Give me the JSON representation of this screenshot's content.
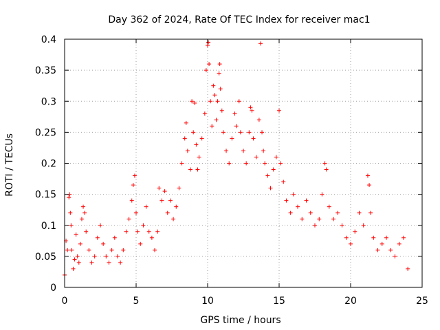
{
  "chart_data": {
    "type": "scatter",
    "title": "Day 362 of 2024, Rate Of TEC Index for receiver mac1",
    "xlabel": "GPS time / hours",
    "ylabel": "ROTI / TECUs",
    "xlim": [
      0,
      25
    ],
    "ylim": [
      0,
      0.4
    ],
    "xticks": [
      0,
      5,
      10,
      15,
      20,
      25
    ],
    "yticks": [
      0,
      0.05,
      0.1,
      0.15,
      0.2,
      0.25,
      0.3,
      0.35,
      0.4
    ],
    "xtick_labels": [
      "0",
      "5",
      "10",
      "15",
      "20",
      "25"
    ],
    "ytick_labels": [
      "0",
      "0.05",
      "0.1",
      "0.15",
      "0.2",
      "0.25",
      "0.3",
      "0.35",
      "0.4"
    ],
    "grid": true,
    "marker": "+",
    "color": "#ff0000",
    "series": [
      {
        "points": [
          [
            0.0,
            0.02
          ],
          [
            0.1,
            0.075
          ],
          [
            0.2,
            0.06
          ],
          [
            0.3,
            0.145
          ],
          [
            0.35,
            0.15
          ],
          [
            0.4,
            0.12
          ],
          [
            0.45,
            0.1
          ],
          [
            0.5,
            0.06
          ],
          [
            0.6,
            0.03
          ],
          [
            0.7,
            0.045
          ],
          [
            0.8,
            0.085
          ],
          [
            0.9,
            0.05
          ],
          [
            1.0,
            0.04
          ],
          [
            1.1,
            0.07
          ],
          [
            1.2,
            0.11
          ],
          [
            1.3,
            0.13
          ],
          [
            1.4,
            0.12
          ],
          [
            1.5,
            0.09
          ],
          [
            1.7,
            0.06
          ],
          [
            1.9,
            0.04
          ],
          [
            2.1,
            0.05
          ],
          [
            2.3,
            0.08
          ],
          [
            2.5,
            0.1
          ],
          [
            2.7,
            0.07
          ],
          [
            2.9,
            0.05
          ],
          [
            3.1,
            0.04
          ],
          [
            3.3,
            0.06
          ],
          [
            3.5,
            0.08
          ],
          [
            3.7,
            0.05
          ],
          [
            3.9,
            0.04
          ],
          [
            4.1,
            0.06
          ],
          [
            4.3,
            0.09
          ],
          [
            4.5,
            0.11
          ],
          [
            4.7,
            0.14
          ],
          [
            4.8,
            0.165
          ],
          [
            4.9,
            0.18
          ],
          [
            5.0,
            0.12
          ],
          [
            5.1,
            0.09
          ],
          [
            5.3,
            0.07
          ],
          [
            5.5,
            0.1
          ],
          [
            5.7,
            0.13
          ],
          [
            5.9,
            0.09
          ],
          [
            6.1,
            0.08
          ],
          [
            6.3,
            0.06
          ],
          [
            6.5,
            0.09
          ],
          [
            6.6,
            0.16
          ],
          [
            6.8,
            0.14
          ],
          [
            7.0,
            0.155
          ],
          [
            7.2,
            0.12
          ],
          [
            7.4,
            0.14
          ],
          [
            7.6,
            0.11
          ],
          [
            7.8,
            0.13
          ],
          [
            8.0,
            0.16
          ],
          [
            8.2,
            0.2
          ],
          [
            8.4,
            0.24
          ],
          [
            8.5,
            0.265
          ],
          [
            8.6,
            0.22
          ],
          [
            8.8,
            0.19
          ],
          [
            8.9,
            0.3
          ],
          [
            9.0,
            0.25
          ],
          [
            9.1,
            0.297
          ],
          [
            9.2,
            0.23
          ],
          [
            9.3,
            0.19
          ],
          [
            9.4,
            0.21
          ],
          [
            9.6,
            0.24
          ],
          [
            9.8,
            0.28
          ],
          [
            9.9,
            0.35
          ],
          [
            10.0,
            0.39
          ],
          [
            10.05,
            0.395
          ],
          [
            10.1,
            0.36
          ],
          [
            10.2,
            0.3
          ],
          [
            10.3,
            0.26
          ],
          [
            10.4,
            0.325
          ],
          [
            10.5,
            0.31
          ],
          [
            10.6,
            0.27
          ],
          [
            10.7,
            0.3
          ],
          [
            10.8,
            0.345
          ],
          [
            10.85,
            0.36
          ],
          [
            10.9,
            0.32
          ],
          [
            11.0,
            0.285
          ],
          [
            11.1,
            0.25
          ],
          [
            11.3,
            0.22
          ],
          [
            11.5,
            0.2
          ],
          [
            11.7,
            0.24
          ],
          [
            11.9,
            0.28
          ],
          [
            12.0,
            0.26
          ],
          [
            12.2,
            0.3
          ],
          [
            12.3,
            0.25
          ],
          [
            12.5,
            0.22
          ],
          [
            12.7,
            0.2
          ],
          [
            12.9,
            0.25
          ],
          [
            13.0,
            0.29
          ],
          [
            13.1,
            0.285
          ],
          [
            13.2,
            0.24
          ],
          [
            13.4,
            0.21
          ],
          [
            13.6,
            0.27
          ],
          [
            13.7,
            0.393
          ],
          [
            13.8,
            0.25
          ],
          [
            13.9,
            0.22
          ],
          [
            14.0,
            0.2
          ],
          [
            14.2,
            0.18
          ],
          [
            14.4,
            0.16
          ],
          [
            14.6,
            0.19
          ],
          [
            14.8,
            0.21
          ],
          [
            15.0,
            0.285
          ],
          [
            15.1,
            0.2
          ],
          [
            15.3,
            0.17
          ],
          [
            15.5,
            0.14
          ],
          [
            15.8,
            0.12
          ],
          [
            16.0,
            0.15
          ],
          [
            16.3,
            0.13
          ],
          [
            16.6,
            0.11
          ],
          [
            16.9,
            0.14
          ],
          [
            17.2,
            0.12
          ],
          [
            17.5,
            0.1
          ],
          [
            17.8,
            0.11
          ],
          [
            18.0,
            0.15
          ],
          [
            18.2,
            0.2
          ],
          [
            18.3,
            0.19
          ],
          [
            18.5,
            0.13
          ],
          [
            18.8,
            0.11
          ],
          [
            19.1,
            0.12
          ],
          [
            19.4,
            0.1
          ],
          [
            19.7,
            0.08
          ],
          [
            20.0,
            0.07
          ],
          [
            20.3,
            0.09
          ],
          [
            20.6,
            0.12
          ],
          [
            20.9,
            0.1
          ],
          [
            21.2,
            0.18
          ],
          [
            21.3,
            0.165
          ],
          [
            21.4,
            0.12
          ],
          [
            21.6,
            0.08
          ],
          [
            21.9,
            0.06
          ],
          [
            22.2,
            0.07
          ],
          [
            22.5,
            0.08
          ],
          [
            22.8,
            0.06
          ],
          [
            23.1,
            0.05
          ],
          [
            23.4,
            0.07
          ],
          [
            23.7,
            0.08
          ],
          [
            24.0,
            0.03
          ]
        ]
      }
    ]
  }
}
